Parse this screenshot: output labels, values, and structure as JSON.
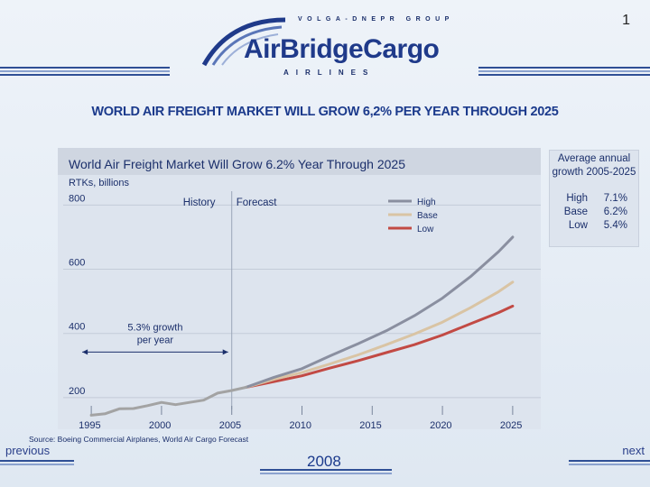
{
  "header": {
    "page_number": "1",
    "logo_group": "VOLGA-DNEPR GROUP",
    "logo_brand": "AirBridgeCargo",
    "logo_airlines": "AIRLINES"
  },
  "slide": {
    "title": "WORLD AIR FREIGHT MARKET WILL GROW 6,2% PER YEAR THROUGH 2025"
  },
  "average_panel": {
    "title": "Average annual growth 2005-2025",
    "rows": [
      {
        "label": "High",
        "value": "7.1%"
      },
      {
        "label": "Base",
        "value": "6.2%"
      },
      {
        "label": "Low",
        "value": "5.4%"
      }
    ]
  },
  "footer": {
    "source": "Source: Boeing Commercial Airplanes, World Air Cargo Forecast",
    "previous": "previous",
    "next": "next",
    "year": "2008"
  },
  "colors": {
    "history": "#a3a3a3",
    "high": "#8a8fa0",
    "base": "#d9c4a4",
    "low": "#c24a44",
    "axis": "#1b2f6b"
  },
  "chart_data": {
    "type": "line",
    "title": "World Air Freight Market Will Grow 6.2% Year Through 2025",
    "ylabel": "RTKs, billions",
    "xlabel": "",
    "xlim": [
      1993,
      2027
    ],
    "ylim": [
      135,
      860
    ],
    "x_ticks": [
      1995,
      2000,
      2005,
      2010,
      2015,
      2020,
      2025
    ],
    "y_ticks": [
      800,
      600,
      400,
      200
    ],
    "divider_year": 2005,
    "annotations": {
      "history_label": "History",
      "forecast_label": "Forecast",
      "growth_note_line1": "5.3% growth",
      "growth_note_line2": "per year",
      "growth_note_x_range": [
        1995,
        2005
      ]
    },
    "legend": [
      "High",
      "Base",
      "Low"
    ],
    "series": [
      {
        "name": "History",
        "x": [
          1995,
          1996,
          1997,
          1998,
          1999,
          2000,
          2001,
          2002,
          2003,
          2004,
          2005,
          2006
        ],
        "values": [
          145,
          150,
          165,
          166,
          175,
          185,
          178,
          185,
          192,
          214,
          222,
          232
        ]
      },
      {
        "name": "High",
        "x": [
          2006,
          2008,
          2010,
          2012,
          2014,
          2016,
          2018,
          2020,
          2022,
          2024,
          2025
        ],
        "values": [
          232,
          263,
          290,
          330,
          368,
          408,
          455,
          510,
          577,
          655,
          700
        ]
      },
      {
        "name": "Base",
        "x": [
          2006,
          2008,
          2010,
          2012,
          2014,
          2016,
          2018,
          2020,
          2022,
          2024,
          2025
        ],
        "values": [
          232,
          257,
          278,
          305,
          333,
          365,
          398,
          435,
          480,
          530,
          560
        ]
      },
      {
        "name": "Low",
        "x": [
          2006,
          2008,
          2010,
          2012,
          2014,
          2016,
          2018,
          2020,
          2022,
          2024,
          2025
        ],
        "values": [
          232,
          250,
          268,
          292,
          315,
          340,
          365,
          395,
          430,
          465,
          485
        ]
      }
    ]
  }
}
